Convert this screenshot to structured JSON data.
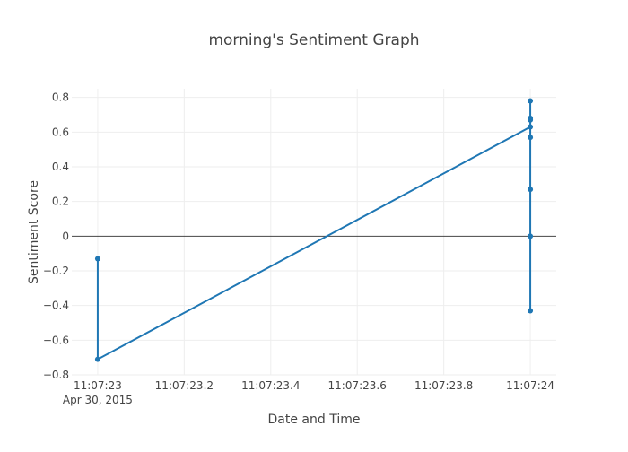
{
  "chart_data": {
    "type": "line",
    "title": "morning's Sentiment Graph",
    "xlabel": "Date and Time",
    "ylabel": "Sentiment Score",
    "x_tick_labels": [
      "11:07:23",
      "11:07:23.2",
      "11:07:23.4",
      "11:07:23.6",
      "11:07:23.8",
      "11:07:24"
    ],
    "x_tick_sublabel": "Apr 30, 2015",
    "y_tick_labels": [
      "−0.8",
      "−0.6",
      "−0.4",
      "−0.2",
      "0",
      "0.2",
      "0.4",
      "0.6",
      "0.8"
    ],
    "xlim": [
      "2015-04-30 11:07:22.94",
      "2015-04-30 11:07:24.06"
    ],
    "ylim": [
      -0.8,
      0.85
    ],
    "grid": true,
    "zero_line": true,
    "color": "#1f77b4",
    "series": [
      {
        "x": [
          "2015-04-30 11:07:23",
          "2015-04-30 11:07:23",
          "2015-04-30 11:07:24",
          "2015-04-30 11:07:24",
          "2015-04-30 11:07:24",
          "2015-04-30 11:07:24",
          "2015-04-30 11:07:24",
          "2015-04-30 11:07:24",
          "2015-04-30 11:07:24",
          "2015-04-30 11:07:24"
        ],
        "values": [
          -0.13,
          -0.71,
          0.63,
          0.78,
          0.68,
          0.67,
          0.57,
          0.27,
          0.0,
          -0.43
        ]
      }
    ]
  }
}
